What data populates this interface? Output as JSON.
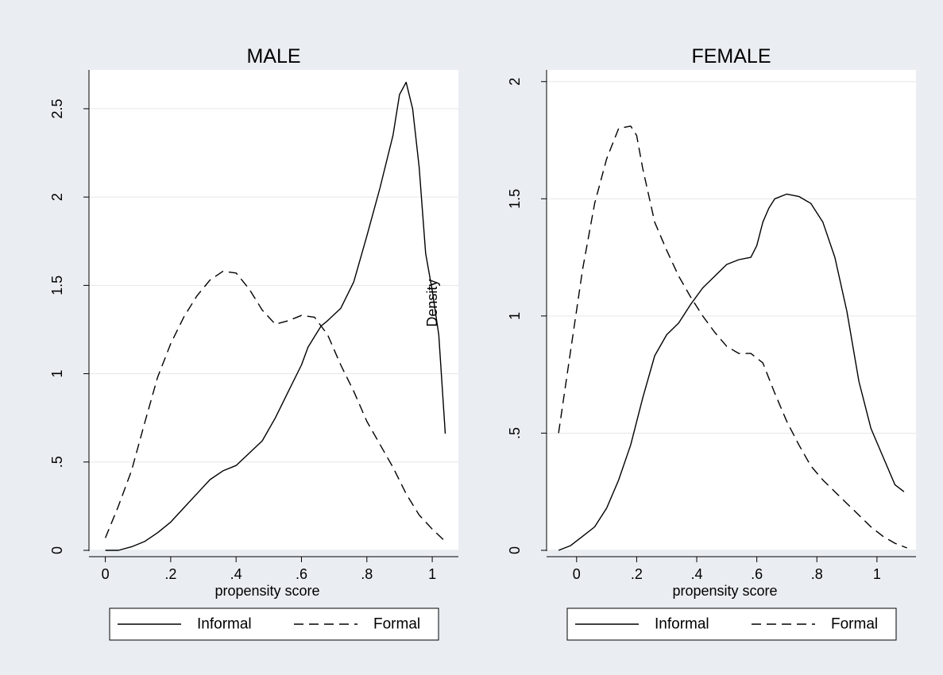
{
  "figure": {
    "background": "#eaeef2",
    "plot_background": "#ffffff",
    "grid_color": "#e6e6e6"
  },
  "chart_data": [
    {
      "type": "line",
      "title": "MALE",
      "xlabel": "propensity score",
      "ylabel": "",
      "xlim": [
        -0.05,
        1.08
      ],
      "ylim": [
        0,
        2.72
      ],
      "x_ticks": [
        0,
        0.2,
        0.4,
        0.6,
        0.8,
        1
      ],
      "x_tick_labels": [
        "0",
        ".2",
        ".4",
        ".6",
        ".8",
        "1"
      ],
      "y_ticks": [
        0,
        0.5,
        1,
        1.5,
        2,
        2.5
      ],
      "y_tick_labels": [
        "0",
        ".5",
        "1",
        "1.5",
        "2",
        "2.5"
      ],
      "grid": true,
      "annotation": {
        "text": "Density",
        "x": 1.0,
        "y": 1.4
      },
      "legend": {
        "position": "bottom",
        "entries": [
          "Informal",
          "Formal"
        ]
      },
      "series": [
        {
          "name": "Informal",
          "style": "solid",
          "x": [
            0,
            0.04,
            0.08,
            0.12,
            0.16,
            0.2,
            0.24,
            0.28,
            0.32,
            0.36,
            0.4,
            0.44,
            0.48,
            0.52,
            0.56,
            0.6,
            0.62,
            0.64,
            0.66,
            0.68,
            0.72,
            0.76,
            0.8,
            0.84,
            0.88,
            0.9,
            0.92,
            0.94,
            0.96,
            0.98,
            1.0,
            1.02,
            1.04
          ],
          "y": [
            0.0,
            0.0,
            0.02,
            0.05,
            0.1,
            0.16,
            0.24,
            0.32,
            0.4,
            0.45,
            0.48,
            0.55,
            0.62,
            0.75,
            0.9,
            1.05,
            1.15,
            1.21,
            1.27,
            1.3,
            1.37,
            1.52,
            1.78,
            2.05,
            2.35,
            2.58,
            2.65,
            2.5,
            2.17,
            1.68,
            1.47,
            1.22,
            0.66
          ]
        },
        {
          "name": "Formal",
          "style": "dashed",
          "x": [
            0,
            0.04,
            0.08,
            0.12,
            0.16,
            0.2,
            0.24,
            0.28,
            0.32,
            0.36,
            0.4,
            0.44,
            0.48,
            0.52,
            0.56,
            0.6,
            0.64,
            0.68,
            0.72,
            0.76,
            0.8,
            0.84,
            0.88,
            0.92,
            0.96,
            1.0,
            1.04
          ],
          "y": [
            0.07,
            0.25,
            0.45,
            0.72,
            0.98,
            1.17,
            1.32,
            1.44,
            1.53,
            1.58,
            1.57,
            1.48,
            1.36,
            1.28,
            1.3,
            1.33,
            1.32,
            1.22,
            1.05,
            0.9,
            0.73,
            0.6,
            0.47,
            0.32,
            0.2,
            0.12,
            0.05
          ]
        }
      ]
    },
    {
      "type": "line",
      "title": "FEMALE",
      "xlabel": "propensity score",
      "ylabel": "",
      "xlim": [
        -0.1,
        1.13
      ],
      "ylim": [
        0,
        2.05
      ],
      "x_ticks": [
        0,
        0.2,
        0.4,
        0.6,
        0.8,
        1
      ],
      "x_tick_labels": [
        "0",
        ".2",
        ".4",
        ".6",
        ".8",
        "1"
      ],
      "y_ticks": [
        0,
        0.5,
        1,
        1.5,
        2
      ],
      "y_tick_labels": [
        "0",
        ".5",
        "1",
        "1.5",
        "2"
      ],
      "grid": true,
      "legend": {
        "position": "bottom",
        "entries": [
          "Informal",
          "Formal"
        ]
      },
      "series": [
        {
          "name": "Informal",
          "style": "solid",
          "x": [
            -0.06,
            -0.02,
            0.02,
            0.06,
            0.1,
            0.14,
            0.18,
            0.22,
            0.26,
            0.3,
            0.34,
            0.38,
            0.42,
            0.46,
            0.5,
            0.54,
            0.58,
            0.6,
            0.62,
            0.64,
            0.66,
            0.7,
            0.74,
            0.78,
            0.82,
            0.86,
            0.9,
            0.94,
            0.98,
            1.02,
            1.06,
            1.09
          ],
          "y": [
            0.0,
            0.02,
            0.06,
            0.1,
            0.18,
            0.3,
            0.45,
            0.65,
            0.83,
            0.92,
            0.97,
            1.05,
            1.12,
            1.17,
            1.22,
            1.24,
            1.25,
            1.3,
            1.4,
            1.46,
            1.5,
            1.52,
            1.51,
            1.48,
            1.4,
            1.25,
            1.02,
            0.72,
            0.52,
            0.4,
            0.28,
            0.25
          ]
        },
        {
          "name": "Formal",
          "style": "dashed",
          "x": [
            -0.06,
            -0.02,
            0.02,
            0.06,
            0.1,
            0.14,
            0.18,
            0.2,
            0.22,
            0.26,
            0.3,
            0.34,
            0.38,
            0.42,
            0.46,
            0.5,
            0.54,
            0.58,
            0.62,
            0.66,
            0.7,
            0.74,
            0.78,
            0.82,
            0.86,
            0.9,
            0.94,
            0.98,
            1.02,
            1.06,
            1.1
          ],
          "y": [
            0.5,
            0.85,
            1.2,
            1.48,
            1.67,
            1.8,
            1.81,
            1.77,
            1.63,
            1.4,
            1.28,
            1.17,
            1.08,
            1.0,
            0.93,
            0.87,
            0.84,
            0.84,
            0.8,
            0.67,
            0.55,
            0.45,
            0.36,
            0.3,
            0.25,
            0.2,
            0.15,
            0.1,
            0.06,
            0.03,
            0.01
          ]
        }
      ]
    }
  ]
}
